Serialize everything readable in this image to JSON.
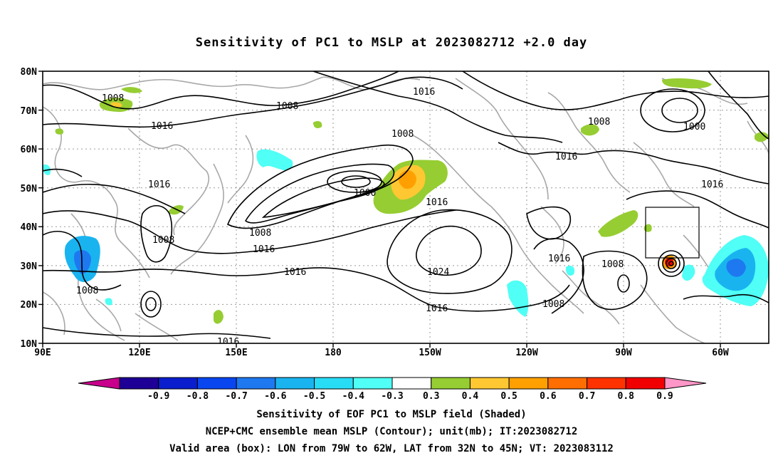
{
  "title": "Sensitivity of PC1 to MSLP at 2023082712 +2.0 day",
  "lat_labels": [
    "80N",
    "70N",
    "60N",
    "50N",
    "40N",
    "30N",
    "20N",
    "10N"
  ],
  "lon_labels": [
    "90E",
    "120E",
    "150E",
    "180",
    "150W",
    "120W",
    "90W",
    "60W"
  ],
  "colorbar": {
    "labels": [
      "-0.9",
      "-0.8",
      "-0.7",
      "-0.6",
      "-0.5",
      "-0.4",
      "-0.3",
      "0.3",
      "0.4",
      "0.5",
      "0.6",
      "0.7",
      "0.8",
      "0.9"
    ],
    "colors": [
      "#c8008c",
      "#1e0096",
      "#0a1ecd",
      "#0a46f0",
      "#1e78f0",
      "#19b4f0",
      "#28dcf5",
      "#50fff5",
      "#ffffff",
      "#96cd32",
      "#ffc832",
      "#ffa000",
      "#ff6e00",
      "#ff3200",
      "#f00000",
      "#ff96c8"
    ]
  },
  "contour_labels": [
    {
      "text": "1008"
    },
    {
      "text": "1008"
    },
    {
      "text": "1016"
    },
    {
      "text": "1016"
    },
    {
      "text": "1008"
    },
    {
      "text": "1016"
    },
    {
      "text": "1000"
    },
    {
      "text": "1016"
    },
    {
      "text": "1008"
    },
    {
      "text": "1008"
    },
    {
      "text": "1016"
    },
    {
      "text": "1016"
    },
    {
      "text": "1008"
    },
    {
      "text": "1016"
    },
    {
      "text": "1000"
    },
    {
      "text": "1016"
    },
    {
      "text": "1024"
    },
    {
      "text": "1016"
    },
    {
      "text": "1016"
    },
    {
      "text": "1008"
    },
    {
      "text": "1008"
    },
    {
      "text": "1008"
    },
    {
      "text": "1016"
    }
  ],
  "captions": [
    "Sensitivity of EOF PC1 to MSLP field (Shaded)",
    "NCEP+CMC ensemble mean MSLP (Contour); unit(mb); IT:2023082712",
    "Valid area (box): LON from 79W to 62W, LAT from 32N to 45N; VT: 2023083112"
  ]
}
